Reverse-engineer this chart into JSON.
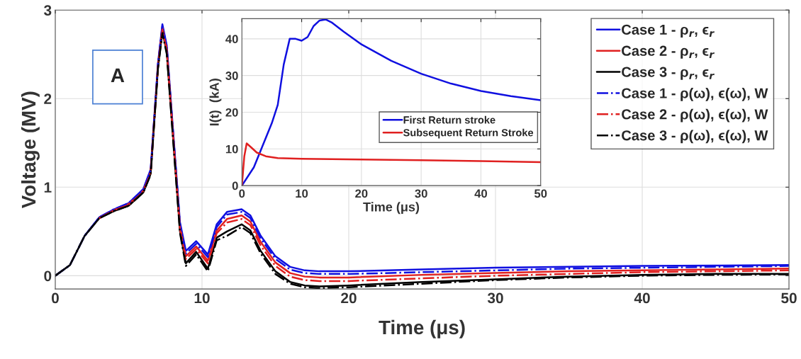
{
  "chart_data": [
    {
      "type": "line",
      "xlabel": "Time (μs)",
      "ylabel": "Voltage (MV)",
      "x": [
        0,
        1,
        2,
        3,
        4,
        5,
        6,
        6.5,
        7,
        7.3,
        7.6,
        8,
        8.5,
        8.9,
        9.6,
        10.4,
        11,
        11.7,
        12.7,
        13.3,
        14,
        15,
        16,
        17,
        18,
        20,
        25,
        30,
        35,
        40,
        45,
        50
      ],
      "series": [
        {
          "name": "Case 1 - ρ$_{r}$, ϵ$_{r}$",
          "color": "#1010e0",
          "line_style": "solid",
          "values": [
            null,
            null,
            0.45,
            0.66,
            0.75,
            0.82,
            0.98,
            1.2,
            2.4,
            2.84,
            2.6,
            1.7,
            0.6,
            0.28,
            0.39,
            0.24,
            0.58,
            0.72,
            0.75,
            0.68,
            0.45,
            0.22,
            0.1,
            0.06,
            0.05,
            0.05,
            0.07,
            0.09,
            0.1,
            0.11,
            0.115,
            0.12
          ]
        },
        {
          "name": "Case 2 - ρ$_{r}$, ϵ$_{r}$",
          "color": "#e02020",
          "line_style": "solid",
          "values": [
            null,
            null,
            null,
            0.65,
            0.74,
            0.81,
            0.96,
            1.17,
            2.37,
            2.8,
            2.56,
            1.66,
            0.55,
            0.22,
            0.33,
            0.17,
            0.51,
            0.64,
            0.68,
            0.61,
            0.38,
            0.15,
            0.03,
            -0.01,
            -0.02,
            -0.02,
            0.01,
            0.03,
            0.05,
            0.06,
            0.07,
            0.08
          ]
        },
        {
          "name": "Case 3 - ρ$_{r}$, ϵ$_{r}$",
          "color": "#000000",
          "line_style": "solid",
          "values": [
            0,
            0.12,
            0.45,
            0.65,
            0.73,
            0.79,
            0.94,
            1.15,
            2.35,
            2.76,
            2.52,
            1.62,
            0.5,
            0.14,
            0.27,
            0.08,
            0.43,
            0.5,
            0.58,
            0.51,
            0.28,
            0.05,
            -0.07,
            -0.11,
            -0.12,
            -0.11,
            -0.07,
            -0.04,
            -0.01,
            0.01,
            0.02,
            0.02
          ]
        },
        {
          "name": "Case 1 - ρ(ω), ϵ(ω), W",
          "color": "#1010e0",
          "line_style": "dashdot",
          "values": [
            0,
            0.12,
            0.45,
            0.66,
            0.75,
            0.82,
            0.97,
            1.19,
            2.39,
            2.82,
            2.58,
            1.68,
            0.58,
            0.25,
            0.36,
            0.21,
            0.55,
            0.69,
            0.72,
            0.65,
            0.42,
            0.19,
            0.07,
            0.03,
            0.02,
            0.02,
            0.04,
            0.06,
            0.08,
            0.09,
            0.1,
            0.11
          ]
        },
        {
          "name": "Case 2 - ρ(ω), ϵ(ω), W",
          "color": "#e02020",
          "line_style": "dashdot",
          "values": [
            null,
            null,
            null,
            0.65,
            0.74,
            0.8,
            0.95,
            1.16,
            2.36,
            2.78,
            2.54,
            1.64,
            0.52,
            0.19,
            0.3,
            0.14,
            0.48,
            0.6,
            0.64,
            0.57,
            0.34,
            0.11,
            -0.01,
            -0.05,
            -0.06,
            -0.06,
            -0.03,
            0,
            0.02,
            0.04,
            0.05,
            0.06
          ]
        },
        {
          "name": "Case 3 - ρ(ω), ϵ(ω), W",
          "color": "#000000",
          "line_style": "dashdot",
          "values": [
            0,
            0.12,
            0.45,
            0.65,
            0.73,
            0.79,
            0.94,
            1.14,
            2.34,
            2.74,
            2.5,
            1.6,
            0.48,
            0.11,
            0.24,
            0.05,
            0.4,
            0.45,
            0.55,
            0.48,
            0.25,
            0.02,
            -0.09,
            -0.13,
            -0.14,
            -0.13,
            -0.09,
            -0.05,
            -0.02,
            0,
            0.01,
            0.015
          ]
        }
      ],
      "xlim": [
        0,
        50
      ],
      "xticks": [
        0,
        10,
        20,
        30,
        40,
        50
      ],
      "ylim": [
        -0.15,
        3
      ],
      "yticks": [
        0,
        1,
        2,
        3
      ],
      "grid": true,
      "legend": "top right",
      "annotations": [
        "A"
      ]
    },
    {
      "type": "line",
      "xlabel": "Time (μs)",
      "ylabel": "I(t)  (kA)",
      "series": [
        {
          "name": "First Return stroke",
          "color": "#1010e0",
          "line_style": "solid",
          "x": [
            0,
            2,
            4,
            5,
            6,
            7,
            8,
            9,
            10,
            11,
            12,
            13,
            14,
            15,
            17,
            20,
            25,
            30,
            35,
            40,
            45,
            50
          ],
          "values": [
            0,
            5,
            13,
            17,
            22,
            33,
            40,
            40,
            39.5,
            40.5,
            43.5,
            45,
            45.3,
            44.5,
            42,
            38.5,
            34,
            30.5,
            27.8,
            25.8,
            24.4,
            23.3
          ]
        },
        {
          "name": "Subsequent Return Stroke",
          "color": "#e02020",
          "line_style": "solid",
          "x": [
            0,
            0.4,
            0.8,
            1.5,
            2.5,
            4,
            6,
            10,
            20,
            30,
            40,
            50
          ],
          "values": [
            0,
            8,
            11.5,
            10.5,
            9,
            8,
            7.5,
            7.3,
            7.1,
            6.9,
            6.7,
            6.4
          ]
        }
      ],
      "xlim": [
        0,
        50
      ],
      "xticks": [
        0,
        10,
        20,
        30,
        40,
        50
      ],
      "ylim": [
        0,
        45.5
      ],
      "yticks": [
        0,
        10,
        20,
        30,
        40
      ],
      "grid": true,
      "legend": "right"
    }
  ]
}
